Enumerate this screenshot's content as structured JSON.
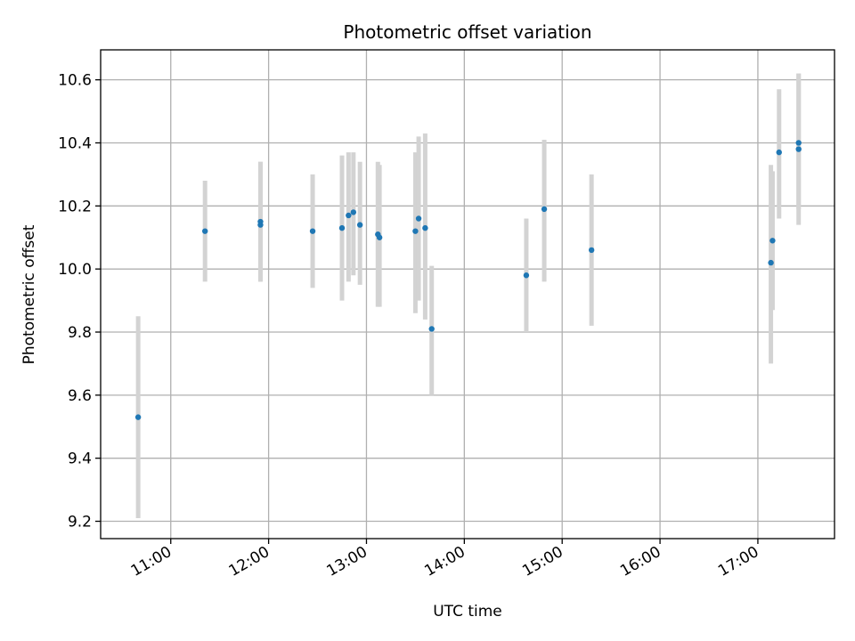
{
  "chart_data": {
    "type": "scatter",
    "title": "Photometric offset variation",
    "xlabel": "UTC time",
    "ylabel": "Photometric offset",
    "x_axis": {
      "min": "10:17",
      "max": "17:47",
      "ticks": [
        "11:00",
        "12:00",
        "13:00",
        "14:00",
        "15:00",
        "16:00",
        "17:00"
      ]
    },
    "y_axis": {
      "min": 9.145,
      "max": 10.695,
      "ticks": [
        "9.2",
        "9.4",
        "9.6",
        "9.8",
        "10.0",
        "10.2",
        "10.4",
        "10.6"
      ]
    },
    "grid": true,
    "colors": {
      "point": "#1f77b4",
      "errorbar": "#d3d3d3"
    },
    "series": [
      {
        "points": [
          {
            "x": "10:40",
            "y": 9.53,
            "ylo": 9.21,
            "yhi": 9.85
          },
          {
            "x": "11:21",
            "y": 10.12,
            "ylo": 9.96,
            "yhi": 10.28
          },
          {
            "x": "11:55",
            "y": 10.15,
            "ylo": 9.96,
            "yhi": 10.34
          },
          {
            "x": "11:55",
            "y": 10.14,
            "ylo": 9.96,
            "yhi": 10.34
          },
          {
            "x": "12:27",
            "y": 10.12,
            "ylo": 9.94,
            "yhi": 10.3
          },
          {
            "x": "12:45",
            "y": 10.13,
            "ylo": 9.9,
            "yhi": 10.36
          },
          {
            "x": "12:49",
            "y": 10.17,
            "ylo": 9.96,
            "yhi": 10.37
          },
          {
            "x": "12:52",
            "y": 10.18,
            "ylo": 9.98,
            "yhi": 10.37
          },
          {
            "x": "12:56",
            "y": 10.14,
            "ylo": 9.95,
            "yhi": 10.34
          },
          {
            "x": "13:07",
            "y": 10.11,
            "ylo": 9.88,
            "yhi": 10.34
          },
          {
            "x": "13:08",
            "y": 10.1,
            "ylo": 9.88,
            "yhi": 10.33
          },
          {
            "x": "13:30",
            "y": 10.12,
            "ylo": 9.86,
            "yhi": 10.37
          },
          {
            "x": "13:32",
            "y": 10.16,
            "ylo": 9.9,
            "yhi": 10.42
          },
          {
            "x": "13:36",
            "y": 10.13,
            "ylo": 9.84,
            "yhi": 10.43
          },
          {
            "x": "13:40",
            "y": 9.81,
            "ylo": 9.6,
            "yhi": 10.01
          },
          {
            "x": "14:38",
            "y": 9.98,
            "ylo": 9.8,
            "yhi": 10.16
          },
          {
            "x": "14:49",
            "y": 10.19,
            "ylo": 9.96,
            "yhi": 10.41
          },
          {
            "x": "15:18",
            "y": 10.06,
            "ylo": 9.82,
            "yhi": 10.3
          },
          {
            "x": "17:08",
            "y": 10.02,
            "ylo": 9.7,
            "yhi": 10.33
          },
          {
            "x": "17:09",
            "y": 10.09,
            "ylo": 9.87,
            "yhi": 10.31
          },
          {
            "x": "17:13",
            "y": 10.37,
            "ylo": 10.16,
            "yhi": 10.57
          },
          {
            "x": "17:25",
            "y": 10.4,
            "ylo": 10.19,
            "yhi": 10.62
          },
          {
            "x": "17:25",
            "y": 10.38,
            "ylo": 10.14,
            "yhi": 10.62
          }
        ]
      }
    ]
  }
}
